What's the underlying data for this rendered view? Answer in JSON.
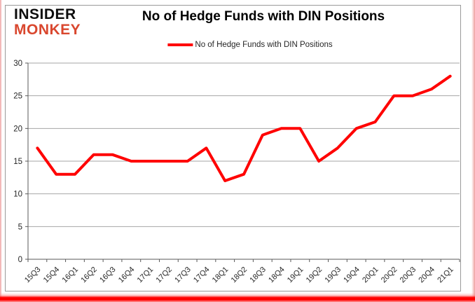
{
  "branding": {
    "name_line1": "INSIDER",
    "name_line2": "MONKEY",
    "accent_color": "#d9472e"
  },
  "chart": {
    "title": "No of Hedge Funds with DIN Positions",
    "legend_label": "No of Hedge Funds with DIN Positions"
  },
  "chart_data": {
    "type": "line",
    "title": "No of Hedge Funds with DIN Positions",
    "categories": [
      "15Q3",
      "15Q4",
      "16Q1",
      "16Q2",
      "16Q3",
      "16Q4",
      "17Q1",
      "17Q2",
      "17Q3",
      "17Q4",
      "18Q1",
      "18Q2",
      "18Q3",
      "18Q4",
      "19Q1",
      "19Q2",
      "19Q3",
      "19Q4",
      "20Q1",
      "20Q2",
      "20Q3",
      "20Q4",
      "21Q1"
    ],
    "series": [
      {
        "name": "No of Hedge Funds with DIN Positions",
        "color": "#ff0000",
        "values": [
          17,
          13,
          13,
          16,
          16,
          15,
          15,
          15,
          15,
          17,
          12,
          13,
          19,
          20,
          20,
          15,
          17,
          20,
          21,
          25,
          25,
          26,
          28
        ]
      }
    ],
    "xlabel": "",
    "ylabel": "",
    "ylim": [
      0,
      30
    ],
    "ytick_step": 5,
    "grid": true,
    "legend_position": "top"
  },
  "colors": {
    "line": "#ff0000",
    "gridline": "#a6a6a6",
    "axis": "#595959",
    "label": "#262626",
    "frame_border": "#9a9a9a",
    "bottom_bar": "#ff0000"
  }
}
